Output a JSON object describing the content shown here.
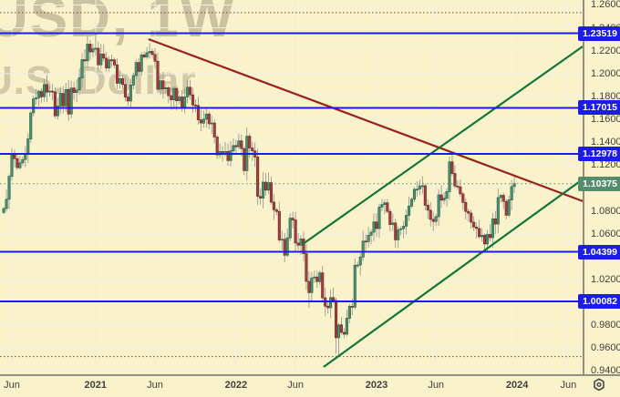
{
  "watermark": {
    "line1": "USD, 1W",
    "line2": "U.S. Dollar"
  },
  "colors": {
    "background": "#faf2ca",
    "grid": "#efeee1",
    "axis_border": "#8f8f82",
    "axis_text": "#3f3f3f",
    "candle_up_fill": "#4f8f72",
    "candle_up_border": "#2c6b4c",
    "candle_down_fill": "#a04040",
    "candle_down_border": "#7a2a2a",
    "wick": "#9a9a90",
    "level_blue": "#1c1ce8",
    "level_badge_blue": "#1c1ce8",
    "current_badge_green": "#558c6e",
    "price_line_green": "#4f8a68",
    "trend_red": "#9b1f1c",
    "trend_green": "#137539",
    "range_dotted": "#55544a"
  },
  "price_axis": {
    "min": 0.94,
    "max": 1.26,
    "step": 0.02,
    "decimals": 5
  },
  "time_axis": {
    "ticks": [
      {
        "label": "Jun",
        "idx": 3,
        "major": false
      },
      {
        "label": "2021",
        "idx": 34,
        "major": true
      },
      {
        "label": "Jun",
        "idx": 56,
        "major": false
      },
      {
        "label": "2022",
        "idx": 86,
        "major": true
      },
      {
        "label": "Jun",
        "idx": 108,
        "major": false
      },
      {
        "label": "2023",
        "idx": 138,
        "major": true
      },
      {
        "label": "Jun",
        "idx": 160,
        "major": false
      },
      {
        "label": "2024",
        "idx": 190,
        "major": true
      },
      {
        "label": "Jun",
        "idx": 209,
        "major": false
      }
    ]
  },
  "chart_data": {
    "type": "candlestick",
    "title_watermark": "USD, 1W",
    "subtitle_watermark": "U.S. Dollar",
    "interval": "1W",
    "x_range": [
      "May 2020",
      "Dec 2023"
    ],
    "ylim": [
      0.94,
      1.26
    ],
    "grid": true,
    "first_open": 1.0785,
    "closes": [
      1.082,
      1.0901,
      1.1101,
      1.1291,
      1.1256,
      1.1177,
      1.1219,
      1.1248,
      1.13,
      1.1428,
      1.1656,
      1.1778,
      1.1787,
      1.1842,
      1.1797,
      1.1903,
      1.1838,
      1.1846,
      1.184,
      1.1631,
      1.1716,
      1.1826,
      1.1717,
      1.186,
      1.1646,
      1.1873,
      1.1834,
      1.1856,
      1.1963,
      1.2121,
      1.2111,
      1.2257,
      1.2189,
      1.2216,
      1.2221,
      1.2076,
      1.2171,
      1.2134,
      1.2048,
      1.212,
      1.2119,
      1.2075,
      1.1915,
      1.1955,
      1.1904,
      1.1794,
      1.176,
      1.1899,
      1.1982,
      1.2097,
      1.202,
      1.2163,
      1.2145,
      1.2182,
      1.2193,
      1.2167,
      1.2108,
      1.1863,
      1.1937,
      1.1865,
      1.1876,
      1.1806,
      1.177,
      1.187,
      1.1762,
      1.1795,
      1.17,
      1.1796,
      1.188,
      1.1813,
      1.1725,
      1.172,
      1.1595,
      1.1567,
      1.1601,
      1.1646,
      1.1561,
      1.1567,
      1.1445,
      1.1289,
      1.1318,
      1.1313,
      1.1318,
      1.1239,
      1.1325,
      1.137,
      1.136,
      1.1411,
      1.1343,
      1.1151,
      1.1452,
      1.1349,
      1.1324,
      1.127,
      1.0926,
      1.0911,
      1.1051,
      1.0981,
      1.1046,
      1.0876,
      1.0808,
      1.0794,
      1.0545,
      1.0551,
      1.0412,
      1.0563,
      1.0735,
      1.072,
      1.0518,
      1.0499,
      1.0554,
      1.0426,
      1.0183,
      1.0084,
      1.0213,
      1.0221,
      1.0181,
      1.0258,
      1.0039,
      0.9966,
      0.9952,
      1.0041,
      1.0016,
      0.969,
      0.9802,
      0.9737,
      0.9721,
      0.9861,
      0.9965,
      0.9958,
      1.0324,
      1.0325,
      1.0395,
      1.0535,
      1.053,
      1.0586,
      1.0613,
      1.0703,
      1.0645,
      1.0832,
      1.0855,
      1.087,
      1.0794,
      1.0679,
      1.0694,
      1.0546,
      1.0635,
      1.0643,
      1.0665,
      1.076,
      1.0841,
      1.0901,
      1.0988,
      1.0989,
      1.1018,
      1.1019,
      1.0849,
      1.0805,
      1.0725,
      1.0707,
      1.0749,
      1.0939,
      1.0893,
      1.091,
      1.0968,
      1.1228,
      1.1126,
      1.1016,
      1.1009,
      1.0948,
      1.0873,
      1.0794,
      1.0779,
      1.07,
      1.0658,
      1.0645,
      1.0573,
      1.0586,
      1.051,
      1.0593,
      1.0565,
      1.073,
      1.0684,
      1.0915,
      1.0935,
      1.0882,
      1.0761,
      1.0895,
      1.1012,
      1.1038
    ],
    "wick_overrides": {
      "34": {
        "high": 1.2349
      },
      "54": {
        "high": 1.2266
      },
      "104": {
        "low": 1.0349
      },
      "113": {
        "low": 0.9952
      },
      "123": {
        "low": 0.955
      },
      "124": {
        "low": 0.9536
      },
      "165": {
        "high": 1.1276
      },
      "178": {
        "low": 1.0448
      },
      "189": {
        "high": 1.111
      }
    },
    "levels": [
      {
        "price": 1.23519,
        "label": "1.23519"
      },
      {
        "price": 1.17015,
        "label": "1.17015"
      },
      {
        "price": 1.12978,
        "label": "1.12978"
      },
      {
        "price": 1.04399,
        "label": "1.04399"
      },
      {
        "price": 1.00082,
        "label": "1.00082"
      }
    ],
    "current_price": {
      "price": 1.10375,
      "label": "1.10375"
    },
    "range_dotted_lines": [
      1.2532,
      0.9525
    ],
    "trendlines": [
      {
        "name": "descending-resistance-line",
        "color_key": "trend_red",
        "x1_idx": 53.6,
        "p1": 1.2301,
        "x2_idx": 214.3,
        "p2": 1.0884
      },
      {
        "name": "ascending-channel-upper",
        "color_key": "trend_green",
        "x1_idx": 110.7,
        "p1": 1.0509,
        "x2_idx": 214.3,
        "p2": 1.2237
      },
      {
        "name": "ascending-channel-lower",
        "color_key": "trend_green",
        "x1_idx": 118.4,
        "p1": 0.9434,
        "x2_idx": 214.3,
        "p2": 1.1075
      }
    ]
  }
}
